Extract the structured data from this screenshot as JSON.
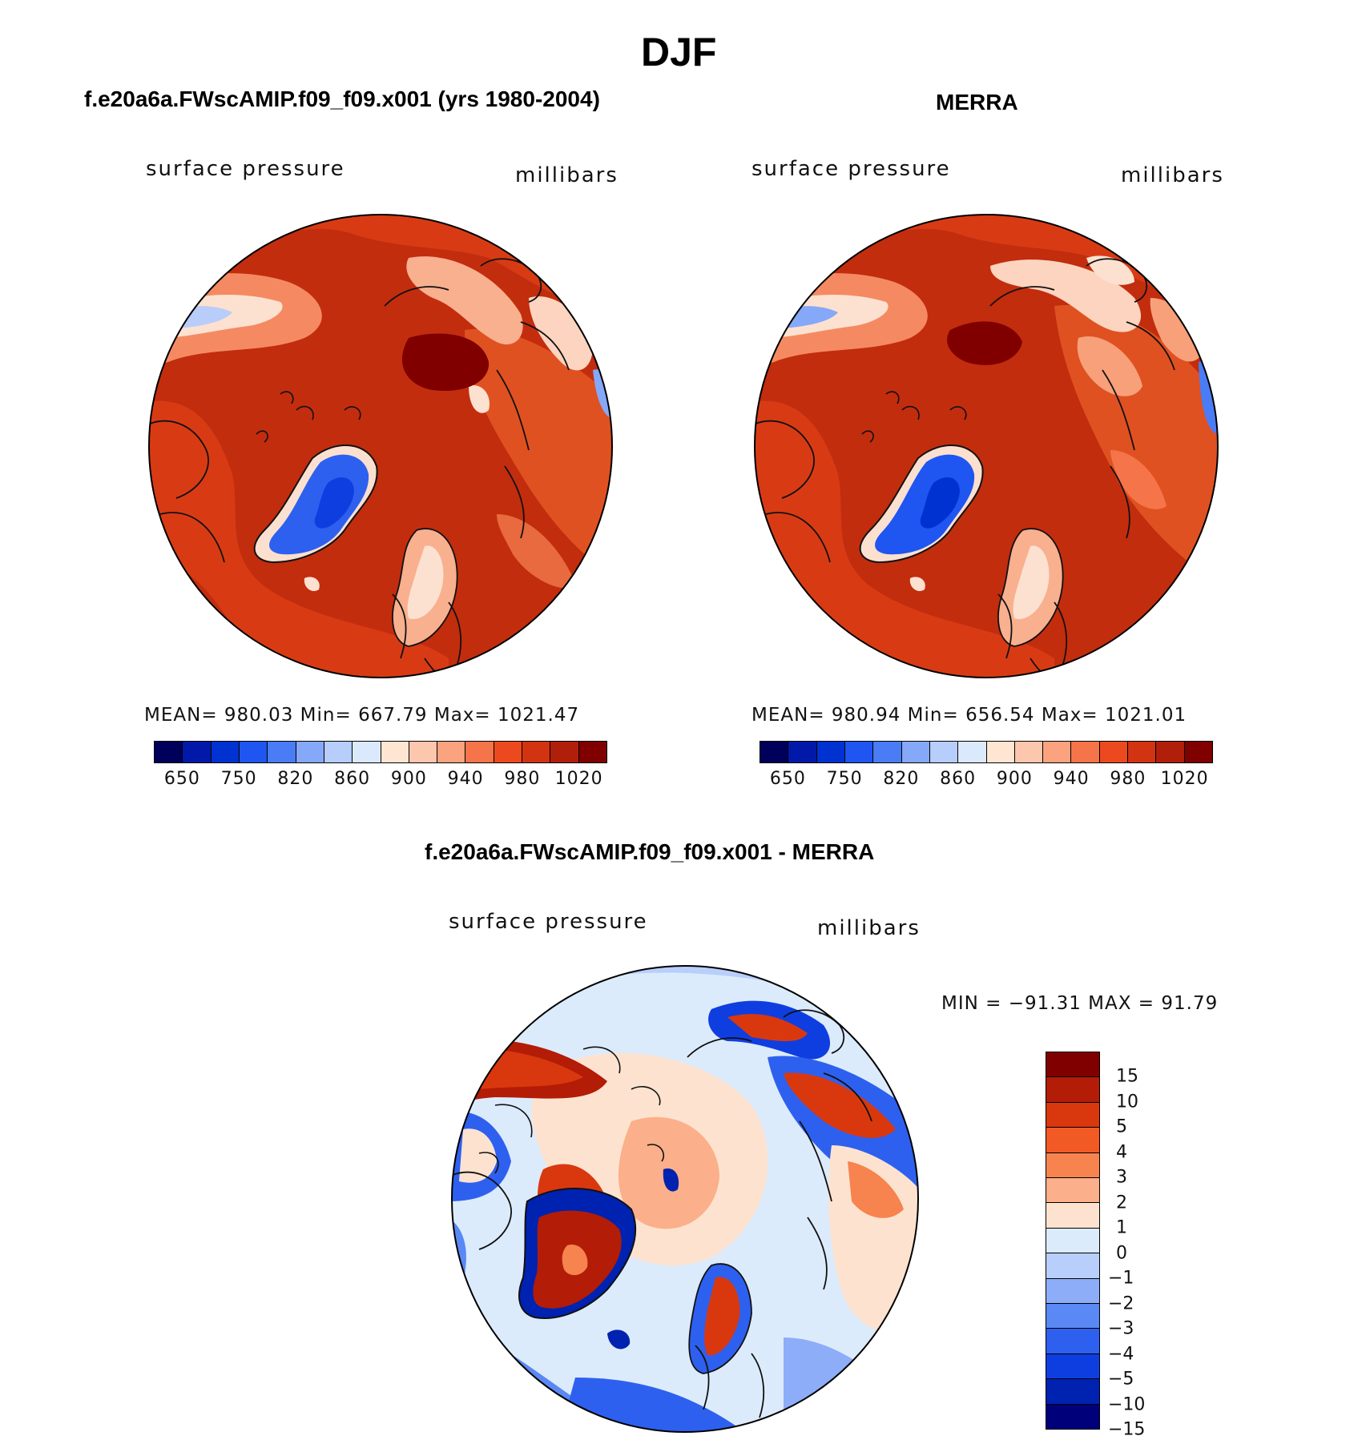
{
  "figure": {
    "season": "DJF"
  },
  "panel_model": {
    "title": "f.e20a6a.FWscAMIP.f09_f09.x001 (yrs 1980-2004)",
    "variable": "surface  pressure",
    "units": "millibars",
    "stats": "MEAN=  980.03   Min=  667.79   Max=  1021.47"
  },
  "panel_obs": {
    "title": "MERRA",
    "variable": "surface  pressure",
    "units": "millibars",
    "stats": "MEAN=  980.94   Min=  656.54   Max=  1021.01"
  },
  "panel_diff": {
    "title": "f.e20a6a.FWscAMIP.f09_f09.x001 - MERRA",
    "variable": "surface  pressure",
    "units": "millibars",
    "minmax": "MIN  =  −91.31  MAX  =    91.79"
  },
  "abs_colorbar": {
    "colors": [
      "#00005a",
      "#0019a8",
      "#0032d2",
      "#1f55f0",
      "#4a7cf6",
      "#86a8f8",
      "#b7cdfb",
      "#dbe9fc",
      "#ffe6d2",
      "#fdc7ad",
      "#fba37f",
      "#f6744a",
      "#ec4a1e",
      "#d23412",
      "#b01f0a",
      "#800000"
    ],
    "labels": [
      "650",
      "750",
      "820",
      "860",
      "900",
      "940",
      "980",
      "1020"
    ]
  },
  "diff_colorbar": {
    "colors": [
      "#800000",
      "#b31c06",
      "#d9380f",
      "#f15a24",
      "#f7834f",
      "#fbaf8a",
      "#fde3cf",
      "#dcebfc",
      "#b8cefb",
      "#8eadf8",
      "#5a88f4",
      "#2e60ef",
      "#0f3ee0",
      "#0022b0",
      "#00007a"
    ],
    "labels": [
      "15",
      "10",
      "5",
      "4",
      "3",
      "2",
      "1",
      "0",
      "−1",
      "−2",
      "−3",
      "−4",
      "−5",
      "−10",
      "−15"
    ]
  }
}
